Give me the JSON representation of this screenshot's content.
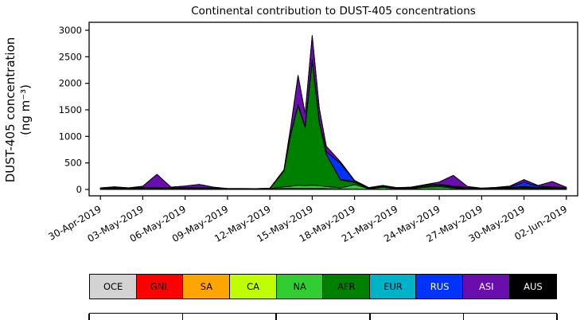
{
  "figure": {
    "background": "#ffffff"
  },
  "chart_data": {
    "type": "area",
    "stacked": true,
    "title": "Continental contribution to DUST-405 concentrations",
    "ylabel_line1": "DUST-405 concentration",
    "ylabel_line2": "(ng m⁻³)",
    "x_unit": "days since 30-Apr-2019",
    "grid": false,
    "legend_position": "bottom",
    "xlim": [
      -0.8,
      33.8
    ],
    "ylim": [
      -120,
      3150
    ],
    "yticks": [
      0,
      500,
      1000,
      1500,
      2000,
      2500,
      3000
    ],
    "xticks": [
      {
        "pos": 0,
        "label": "30-Apr-2019"
      },
      {
        "pos": 3,
        "label": "03-May-2019"
      },
      {
        "pos": 6,
        "label": "06-May-2019"
      },
      {
        "pos": 9,
        "label": "09-May-2019"
      },
      {
        "pos": 12,
        "label": "12-May-2019"
      },
      {
        "pos": 15,
        "label": "15-May-2019"
      },
      {
        "pos": 18,
        "label": "18-May-2019"
      },
      {
        "pos": 21,
        "label": "21-May-2019"
      },
      {
        "pos": 24,
        "label": "24-May-2019"
      },
      {
        "pos": 27,
        "label": "27-May-2019"
      },
      {
        "pos": 30,
        "label": "30-May-2019"
      },
      {
        "pos": 33,
        "label": "02-Jun-2019"
      }
    ],
    "x": [
      0,
      1,
      2,
      3,
      4,
      5,
      6,
      7,
      8,
      9,
      10,
      11,
      12,
      13,
      13.5,
      14,
      14.5,
      15,
      15.5,
      16,
      17,
      18,
      19,
      20,
      21,
      22,
      23,
      24,
      25,
      26,
      27,
      28,
      29,
      30,
      31,
      32,
      33
    ],
    "series": [
      {
        "name": "OCE",
        "values": [
          10,
          15,
          10,
          15,
          10,
          10,
          10,
          10,
          10,
          5,
          5,
          5,
          8,
          20,
          20,
          20,
          20,
          20,
          20,
          15,
          10,
          10,
          5,
          10,
          5,
          8,
          10,
          10,
          10,
          8,
          5,
          5,
          8,
          10,
          8,
          10,
          8
        ]
      },
      {
        "name": "GNL",
        "values": [
          0,
          0,
          0,
          0,
          0,
          0,
          0,
          0,
          0,
          0,
          0,
          0,
          0,
          0,
          0,
          0,
          0,
          0,
          0,
          0,
          0,
          0,
          0,
          0,
          0,
          0,
          0,
          0,
          0,
          0,
          0,
          0,
          0,
          0,
          0,
          0,
          0
        ]
      },
      {
        "name": "SA",
        "values": [
          0,
          0,
          0,
          0,
          0,
          0,
          0,
          0,
          0,
          0,
          0,
          0,
          0,
          0,
          0,
          0,
          0,
          0,
          0,
          0,
          0,
          0,
          0,
          0,
          0,
          0,
          0,
          0,
          0,
          0,
          0,
          0,
          0,
          0,
          0,
          0,
          0
        ]
      },
      {
        "name": "CA",
        "values": [
          0,
          0,
          0,
          0,
          0,
          0,
          0,
          0,
          0,
          0,
          0,
          0,
          0,
          0,
          0,
          0,
          0,
          0,
          0,
          0,
          0,
          0,
          0,
          0,
          0,
          0,
          0,
          0,
          0,
          0,
          0,
          0,
          0,
          0,
          0,
          0,
          0
        ]
      },
      {
        "name": "NA",
        "values": [
          5,
          10,
          5,
          10,
          10,
          8,
          10,
          10,
          8,
          5,
          5,
          4,
          5,
          30,
          40,
          60,
          50,
          60,
          50,
          40,
          20,
          80,
          10,
          30,
          10,
          10,
          30,
          40,
          20,
          10,
          5,
          8,
          15,
          20,
          15,
          15,
          8
        ]
      },
      {
        "name": "AFR",
        "values": [
          5,
          5,
          5,
          5,
          5,
          5,
          5,
          5,
          5,
          3,
          3,
          3,
          5,
          300,
          1000,
          1500,
          1100,
          2350,
          1200,
          600,
          150,
          40,
          5,
          10,
          5,
          5,
          15,
          20,
          15,
          8,
          5,
          5,
          10,
          15,
          10,
          10,
          5
        ]
      },
      {
        "name": "EUR",
        "values": [
          0,
          0,
          0,
          5,
          5,
          0,
          5,
          5,
          0,
          0,
          0,
          0,
          0,
          0,
          10,
          20,
          10,
          20,
          10,
          10,
          10,
          20,
          5,
          10,
          5,
          5,
          20,
          20,
          10,
          5,
          0,
          5,
          5,
          10,
          5,
          5,
          5
        ]
      },
      {
        "name": "RUS",
        "values": [
          0,
          5,
          0,
          5,
          5,
          5,
          5,
          5,
          5,
          0,
          0,
          0,
          0,
          0,
          0,
          0,
          0,
          0,
          0,
          50,
          300,
          10,
          5,
          5,
          5,
          5,
          5,
          10,
          10,
          5,
          0,
          5,
          10,
          80,
          20,
          10,
          5
        ]
      },
      {
        "name": "ASI",
        "values": [
          10,
          15,
          10,
          20,
          250,
          15,
          30,
          60,
          15,
          5,
          5,
          5,
          5,
          20,
          150,
          550,
          250,
          450,
          250,
          100,
          30,
          10,
          5,
          10,
          5,
          10,
          10,
          40,
          200,
          20,
          10,
          10,
          15,
          50,
          15,
          100,
          10
        ]
      },
      {
        "name": "AUS",
        "values": [
          0,
          0,
          0,
          0,
          0,
          0,
          0,
          0,
          0,
          0,
          0,
          0,
          0,
          0,
          0,
          0,
          0,
          0,
          0,
          0,
          0,
          0,
          0,
          0,
          0,
          0,
          0,
          0,
          0,
          0,
          0,
          0,
          0,
          0,
          0,
          0,
          0
        ]
      }
    ]
  },
  "legend": {
    "items": [
      {
        "label": "OCE",
        "color": "#d3d3d3",
        "text": "#000000"
      },
      {
        "label": "GNL",
        "color": "#ff0000",
        "text": "#000000"
      },
      {
        "label": "SA",
        "color": "#ffa500",
        "text": "#000000"
      },
      {
        "label": "CA",
        "color": "#bfff00",
        "text": "#000000"
      },
      {
        "label": "NA",
        "color": "#32cd32",
        "text": "#000000"
      },
      {
        "label": "AFR",
        "color": "#008000",
        "text": "#000000"
      },
      {
        "label": "EUR",
        "color": "#00b2c8",
        "text": "#000000"
      },
      {
        "label": "RUS",
        "color": "#0033ff",
        "text": "#ffffff"
      },
      {
        "label": "ASI",
        "color": "#6a0dad",
        "text": "#ffffff"
      },
      {
        "label": "AUS",
        "color": "#000000",
        "text": "#ffffff"
      }
    ]
  }
}
